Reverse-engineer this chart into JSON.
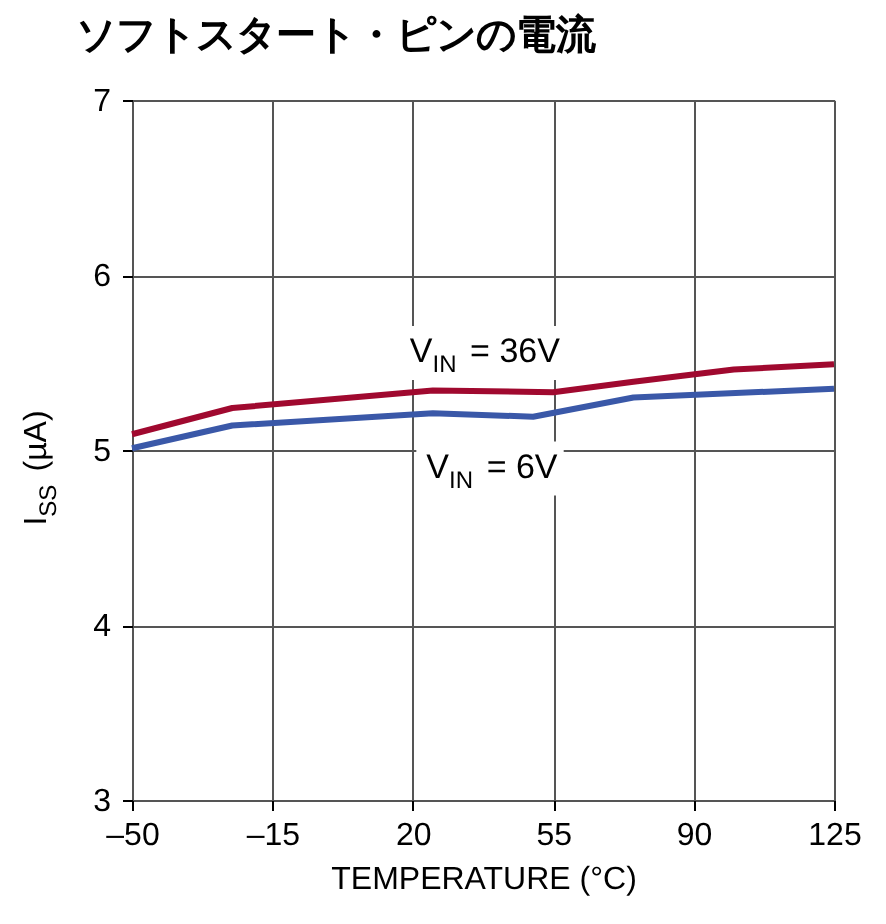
{
  "chart_data": {
    "type": "line",
    "title": "ソフトスタート・ピンの電流",
    "xlabel": "TEMPERATURE (°C)",
    "ylabel": "I$_{SS}$ (µA)",
    "x": [
      -50,
      -25,
      25,
      55,
      75,
      100,
      125
    ],
    "series": [
      {
        "color": "#a0092f",
        "values": [
          5.09,
          5.24,
          5.34,
          5.33,
          5.39,
          5.46,
          5.49
        ]
      },
      {
        "color": "#3a58a8",
        "x": [
          -50,
          -25,
          25,
          50,
          75,
          125
        ],
        "values": [
          5.01,
          5.14,
          5.21,
          5.19,
          5.3,
          5.35
        ]
      }
    ],
    "annotations": [
      "V$_{IN}$ = 36V",
      "V$_{IN}$ = 6V"
    ],
    "xlim": [
      -50,
      125
    ],
    "xticks": [
      {
        "value": -50,
        "label": "–50"
      },
      {
        "value": -15,
        "label": "–15"
      },
      20,
      55,
      90,
      125
    ],
    "ylim": [
      3,
      7
    ],
    "yticks": [
      3,
      4,
      5,
      6,
      7
    ],
    "grid": true,
    "legend": false,
    "marker": "none",
    "line_style": "solid"
  }
}
